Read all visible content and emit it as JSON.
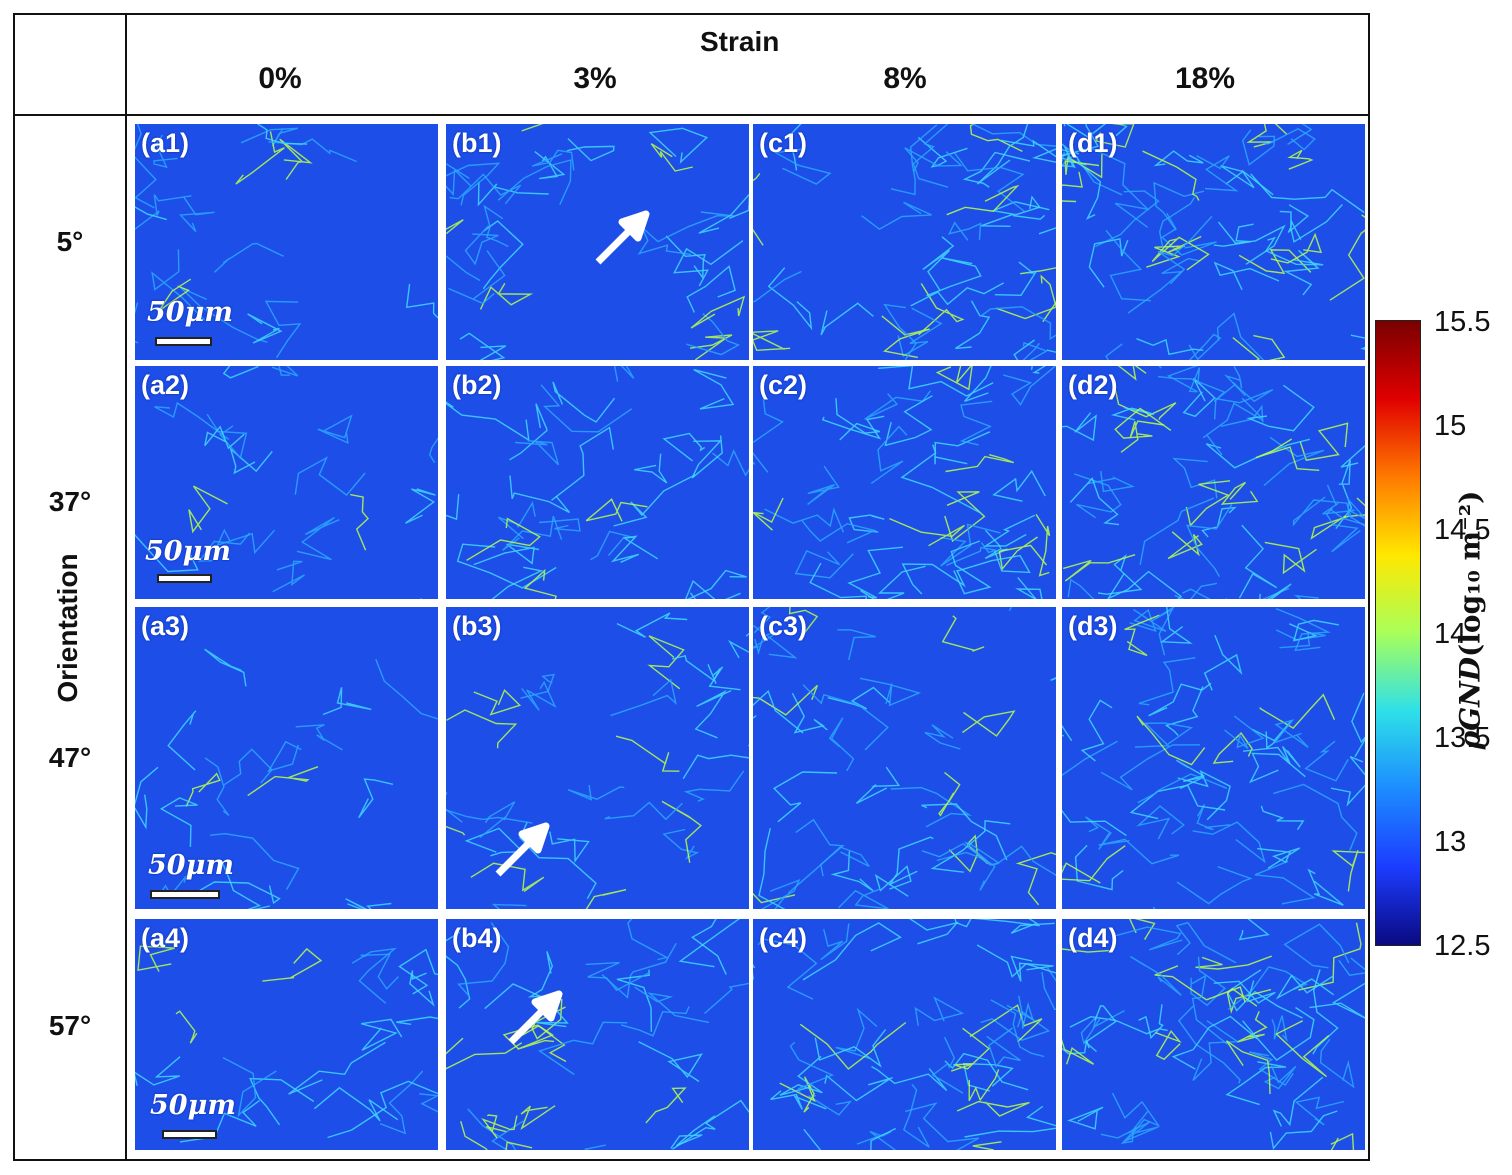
{
  "header": {
    "strain_title": "Strain",
    "columns": [
      "0%",
      "3%",
      "8%",
      "18%"
    ]
  },
  "orientation": {
    "title": "Orientation",
    "rows": [
      "5°",
      "37°",
      "47°",
      "57°"
    ]
  },
  "panels": [
    [
      "(a1)",
      "(b1)",
      "(c1)",
      "(d1)"
    ],
    [
      "(a2)",
      "(b2)",
      "(c2)",
      "(d2)"
    ],
    [
      "(a3)",
      "(b3)",
      "(c3)",
      "(d3)"
    ],
    [
      "(a4)",
      "(b4)",
      "(c4)",
      "(d4)"
    ]
  ],
  "scale_bar": "50μm",
  "colorbar": {
    "ticks": [
      "15.5",
      "15",
      "14.5",
      "14",
      "13.5",
      "13",
      "12.5"
    ],
    "label_symbol": "ρGND",
    "label_units": "(log₁₀ m⁻²)",
    "colors": [
      "#7a0000",
      "#e00000",
      "#ff7a00",
      "#ffe800",
      "#a8ff5a",
      "#2ee0e8",
      "#1c8cff",
      "#1c3cff",
      "#0a0a80"
    ]
  }
}
